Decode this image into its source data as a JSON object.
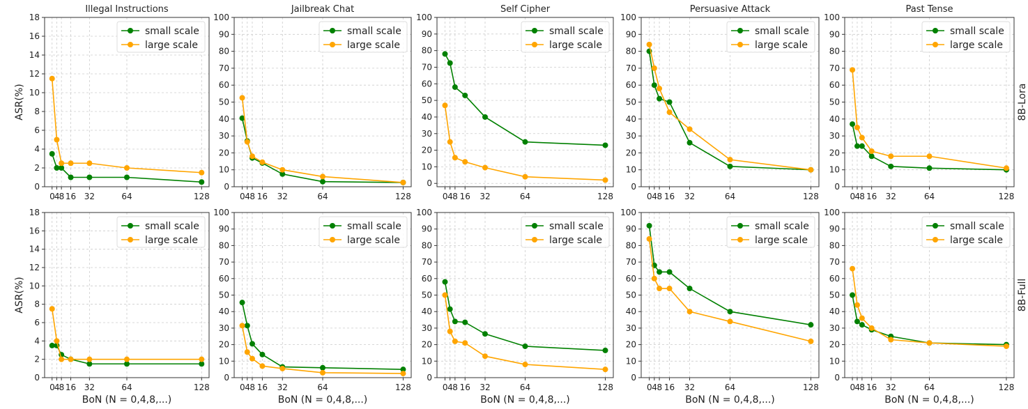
{
  "chart_data": [
    {
      "type": "line",
      "title": "Illegal Instructions",
      "row_label": "",
      "ylabel": "ASR(%)",
      "xlabel": "",
      "x": [
        0,
        4,
        8,
        16,
        32,
        64,
        128
      ],
      "xticks": [
        "0",
        "4",
        "8",
        "16",
        "32",
        "64",
        "128"
      ],
      "ylim": [
        0,
        18
      ],
      "ytick_step": 2,
      "grid": true,
      "legend": "top-right",
      "series": [
        {
          "name": "small scale",
          "color": "#008000",
          "values": [
            3.5,
            2,
            2,
            1,
            1,
            1,
            0.5
          ]
        },
        {
          "name": "large scale",
          "color": "#FFA500",
          "values": [
            11.5,
            5,
            2.5,
            2.5,
            2.5,
            2,
            1.5
          ]
        }
      ]
    },
    {
      "type": "line",
      "title": "Jailbreak Chat",
      "row_label": "",
      "ylabel": "",
      "xlabel": "",
      "x": [
        0,
        4,
        8,
        16,
        32,
        64,
        128
      ],
      "xticks": [
        "0",
        "4",
        "8",
        "16",
        "32",
        "64",
        "128"
      ],
      "ylim": [
        0,
        100
      ],
      "ytick_step": 10,
      "grid": true,
      "legend": "top-right",
      "series": [
        {
          "name": "small scale",
          "color": "#008000",
          "values": [
            40.5,
            27,
            17,
            14,
            7.5,
            3,
            2.5
          ]
        },
        {
          "name": "large scale",
          "color": "#FFA500",
          "values": [
            52.5,
            26.5,
            18,
            14.5,
            10,
            6,
            2.5
          ]
        }
      ]
    },
    {
      "type": "line",
      "title": "Self Cipher",
      "row_label": "",
      "ylabel": "",
      "xlabel": "",
      "x": [
        0,
        4,
        8,
        16,
        32,
        64,
        128
      ],
      "xticks": [
        "0",
        "4",
        "8",
        "16",
        "32",
        "64",
        "128"
      ],
      "ylim": [
        -2,
        100
      ],
      "ytick_step": 10,
      "grid": true,
      "legend": "top-right",
      "series": [
        {
          "name": "small scale",
          "color": "#008000",
          "values": [
            78,
            72.5,
            58,
            53,
            40,
            25,
            23
          ]
        },
        {
          "name": "large scale",
          "color": "#FFA500",
          "values": [
            47,
            25,
            15.5,
            13,
            9.5,
            4,
            2
          ]
        }
      ]
    },
    {
      "type": "line",
      "title": "Persuasive Attack",
      "row_label": "",
      "ylabel": "",
      "xlabel": "",
      "x": [
        0,
        4,
        8,
        16,
        32,
        64,
        128
      ],
      "xticks": [
        "0",
        "4",
        "8",
        "16",
        "32",
        "64",
        "128"
      ],
      "ylim": [
        0,
        100
      ],
      "ytick_step": 10,
      "grid": true,
      "legend": "top-right",
      "series": [
        {
          "name": "small scale",
          "color": "#008000",
          "values": [
            80,
            60,
            52,
            50,
            26,
            12,
            10
          ]
        },
        {
          "name": "large scale",
          "color": "#FFA500",
          "values": [
            84,
            70,
            58,
            44,
            34,
            16,
            10
          ]
        }
      ]
    },
    {
      "type": "line",
      "title": "Past Tense",
      "row_label": "8B-Lora",
      "ylabel": "",
      "xlabel": "",
      "x": [
        0,
        4,
        8,
        16,
        32,
        64,
        128
      ],
      "xticks": [
        "0",
        "4",
        "8",
        "16",
        "32",
        "64",
        "128"
      ],
      "ylim": [
        0,
        100
      ],
      "ytick_step": 10,
      "grid": true,
      "legend": "top-right",
      "series": [
        {
          "name": "small scale",
          "color": "#008000",
          "values": [
            37,
            24,
            24,
            18,
            12,
            11,
            10
          ]
        },
        {
          "name": "large scale",
          "color": "#FFA500",
          "values": [
            69,
            35,
            29,
            21,
            18,
            18,
            11
          ]
        }
      ]
    },
    {
      "type": "line",
      "title": "",
      "row_label": "",
      "ylabel": "ASR(%)",
      "xlabel": "BoN (N = 0,4,8,...)",
      "x": [
        0,
        4,
        8,
        16,
        32,
        64,
        128
      ],
      "xticks": [
        "0",
        "4",
        "8",
        "16",
        "32",
        "64",
        "128"
      ],
      "ylim": [
        0,
        18
      ],
      "ytick_step": 2,
      "grid": true,
      "legend": "top-right",
      "series": [
        {
          "name": "small scale",
          "color": "#008000",
          "values": [
            3.5,
            3.5,
            2.5,
            2,
            1.5,
            1.5,
            1.5
          ]
        },
        {
          "name": "large scale",
          "color": "#FFA500",
          "values": [
            7.5,
            4,
            2,
            2,
            2,
            2,
            2
          ]
        }
      ]
    },
    {
      "type": "line",
      "title": "",
      "row_label": "",
      "ylabel": "",
      "xlabel": "BoN (N = 0,4,8,...)",
      "x": [
        0,
        4,
        8,
        16,
        32,
        64,
        128
      ],
      "xticks": [
        "0",
        "4",
        "8",
        "16",
        "32",
        "64",
        "128"
      ],
      "ylim": [
        0,
        100
      ],
      "ytick_step": 10,
      "grid": true,
      "legend": "top-right",
      "series": [
        {
          "name": "small scale",
          "color": "#008000",
          "values": [
            45.5,
            31.5,
            20.5,
            14,
            6.5,
            6,
            5
          ]
        },
        {
          "name": "large scale",
          "color": "#FFA500",
          "values": [
            31.5,
            15.5,
            11.5,
            7,
            5.5,
            3,
            2.5
          ]
        }
      ]
    },
    {
      "type": "line",
      "title": "",
      "row_label": "",
      "ylabel": "",
      "xlabel": "BoN (N = 0,4,8,...)",
      "x": [
        0,
        4,
        8,
        16,
        32,
        64,
        128
      ],
      "xticks": [
        "0",
        "4",
        "8",
        "16",
        "32",
        "64",
        "128"
      ],
      "ylim": [
        0,
        100
      ],
      "ytick_step": 10,
      "grid": true,
      "legend": "top-right",
      "series": [
        {
          "name": "small scale",
          "color": "#008000",
          "values": [
            58,
            41.5,
            34,
            33.5,
            26.5,
            19,
            16.5
          ]
        },
        {
          "name": "large scale",
          "color": "#FFA500",
          "values": [
            50,
            28,
            22,
            21,
            13,
            8,
            5
          ]
        }
      ]
    },
    {
      "type": "line",
      "title": "",
      "row_label": "",
      "ylabel": "",
      "xlabel": "BoN (N = 0,4,8,...)",
      "x": [
        0,
        4,
        8,
        16,
        32,
        64,
        128
      ],
      "xticks": [
        "0",
        "4",
        "8",
        "16",
        "32",
        "64",
        "128"
      ],
      "ylim": [
        0,
        100
      ],
      "ytick_step": 10,
      "grid": true,
      "legend": "top-right",
      "series": [
        {
          "name": "small scale",
          "color": "#008000",
          "values": [
            92,
            68,
            64,
            64,
            54,
            40,
            32
          ]
        },
        {
          "name": "large scale",
          "color": "#FFA500",
          "values": [
            84,
            60,
            54,
            54,
            40,
            34,
            22
          ]
        }
      ]
    },
    {
      "type": "line",
      "title": "",
      "row_label": "8B-Full",
      "ylabel": "",
      "xlabel": "BoN (N = 0,4,8,...)",
      "x": [
        0,
        4,
        8,
        16,
        32,
        64,
        128
      ],
      "xticks": [
        "0",
        "4",
        "8",
        "16",
        "32",
        "64",
        "128"
      ],
      "ylim": [
        0,
        100
      ],
      "ytick_step": 10,
      "grid": true,
      "legend": "top-right",
      "series": [
        {
          "name": "small scale",
          "color": "#008000",
          "values": [
            50,
            34,
            32,
            29,
            25,
            21,
            20
          ]
        },
        {
          "name": "large scale",
          "color": "#FFA500",
          "values": [
            66,
            44,
            36,
            30,
            23,
            21,
            19
          ]
        }
      ]
    }
  ]
}
